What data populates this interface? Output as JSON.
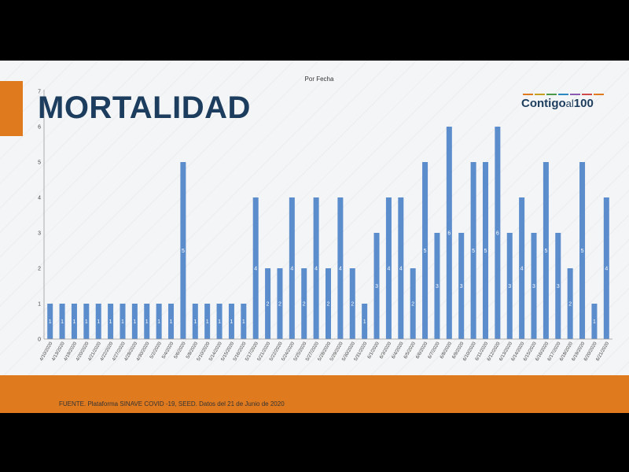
{
  "slide": {
    "title": "MORTALIDAD",
    "source": "FUENTE. Plataforma SINAVE COVID -19, SEED. Datos del 21 de Junio de 2020",
    "logo": {
      "word1": "Contigo",
      "word2": "al",
      "word3": "100"
    },
    "colors": {
      "orange": "#e07a1f",
      "navy": "#1c3d5e",
      "bar": "#5b8ccc"
    }
  },
  "chart_data": {
    "type": "bar",
    "title": "Por Fecha",
    "xlabel": "",
    "ylabel": "",
    "ylim": [
      0,
      7
    ],
    "yticks": [
      "0",
      "1",
      "2",
      "3",
      "4",
      "5",
      "6",
      "7"
    ],
    "grid": false,
    "data_labels": true,
    "categories": [
      "4/10/2020",
      "4/13/2020",
      "4/19/2020",
      "4/20/2020",
      "4/21/2020",
      "4/22/2020",
      "4/27/2020",
      "4/28/2020",
      "4/30/2020",
      "5/2/2020",
      "5/4/2020",
      "5/6/2020",
      "5/8/2020",
      "5/10/2020",
      "5/14/2020",
      "5/15/2020",
      "5/16/2020",
      "5/17/2020",
      "5/21/2020",
      "5/22/2020",
      "5/24/2020",
      "5/25/2020",
      "5/27/2020",
      "5/28/2020",
      "5/29/2020",
      "5/30/2020",
      "5/31/2020",
      "6/1/2020",
      "6/3/2020",
      "6/4/2020",
      "6/5/2020",
      "6/6/2020",
      "6/7/2020",
      "6/8/2020",
      "6/9/2020",
      "6/10/2020",
      "6/11/2020",
      "6/12/2020",
      "6/13/2020",
      "6/14/2020",
      "6/15/2020",
      "6/16/2020",
      "6/17/2020",
      "6/18/2020",
      "6/19/2020",
      "6/20/2020",
      "6/21/2020"
    ],
    "values": [
      1,
      1,
      1,
      1,
      1,
      1,
      1,
      1,
      1,
      1,
      1,
      5,
      1,
      1,
      1,
      1,
      1,
      4,
      2,
      2,
      4,
      2,
      4,
      2,
      4,
      2,
      1,
      3,
      4,
      4,
      2,
      5,
      3,
      6,
      3,
      5,
      5,
      6,
      3,
      4,
      3,
      5,
      3,
      2,
      5,
      1,
      4
    ]
  }
}
